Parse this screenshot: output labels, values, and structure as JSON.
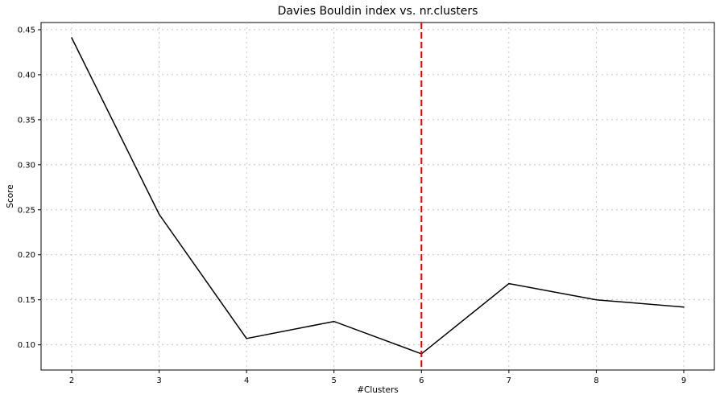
{
  "chart_data": {
    "type": "line",
    "title": "Davies Bouldin index vs. nr.clusters",
    "xlabel": "#Clusters",
    "ylabel": "Score",
    "x": [
      2,
      3,
      4,
      5,
      6,
      7,
      8,
      9
    ],
    "series": [
      {
        "values": [
          0.441,
          0.245,
          0.107,
          0.126,
          0.09,
          0.168,
          0.15,
          0.142
        ],
        "color": "#000000"
      }
    ],
    "xticks": [
      "2",
      "3",
      "4",
      "5",
      "6",
      "7",
      "8",
      "9"
    ],
    "yticks": [
      "0.10",
      "0.15",
      "0.20",
      "0.25",
      "0.30",
      "0.35",
      "0.40",
      "0.45"
    ],
    "xlim": [
      1.65,
      9.35
    ],
    "ylim": [
      0.072,
      0.458
    ],
    "grid": true,
    "reference_line": {
      "x": 6,
      "color": "#e00000",
      "style": "dashed"
    }
  }
}
